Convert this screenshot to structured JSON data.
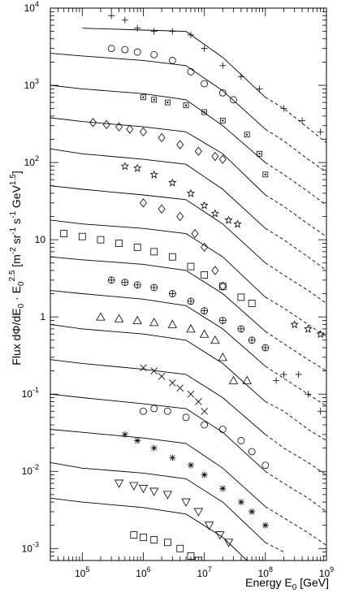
{
  "chart_data": {
    "type": "scatter",
    "x_scale": "log",
    "y_scale": "log",
    "xlim": [
      30000,
      1000000000
    ],
    "ylim": [
      0.0007,
      10000
    ],
    "xlabel": "Energy E₀ [GeV]",
    "ylabel": "Flux dΦ/dE₀ · E₀^2.5 [m⁻² sr⁻¹ s⁻¹ GeV¹˙⁵]",
    "x_ticks": [
      {
        "value": 100000,
        "base": "10",
        "exp": "5"
      },
      {
        "value": 1000000,
        "base": "10",
        "exp": "6"
      },
      {
        "value": 10000000,
        "base": "10",
        "exp": "7"
      },
      {
        "value": 100000000,
        "base": "10",
        "exp": "8"
      },
      {
        "value": 1000000000,
        "base": "10",
        "exp": "9"
      }
    ],
    "y_ticks": [
      {
        "value": 10000,
        "base": "10",
        "exp": "4"
      },
      {
        "value": 1000,
        "base": "10",
        "exp": "3"
      },
      {
        "value": 100,
        "base": "10",
        "exp": "2"
      },
      {
        "value": 10,
        "base": "10",
        "exp": ""
      },
      {
        "value": 1,
        "base": "1",
        "exp": ""
      },
      {
        "value": 0.1,
        "base": "10",
        "exp": "-1"
      },
      {
        "value": 0.01,
        "base": "10",
        "exp": "-2"
      },
      {
        "value": 0.001,
        "base": "10",
        "exp": "-3"
      }
    ],
    "model_curves_solid_until": 100000000,
    "series": [
      {
        "marker": "plus",
        "values": [
          [
            300000,
            8000
          ],
          [
            500000,
            7000
          ],
          [
            800000,
            5500
          ],
          [
            1500000,
            5000
          ],
          [
            3000000,
            5000
          ],
          [
            6000000,
            4500
          ],
          [
            10000000,
            3000
          ],
          [
            20000000,
            1800
          ],
          [
            40000000,
            1300
          ],
          [
            80000000,
            900
          ],
          [
            200000000,
            500
          ],
          [
            400000000,
            350
          ],
          [
            800000000,
            250
          ]
        ]
      },
      {
        "marker": "circle",
        "values": [
          [
            300000,
            3000
          ],
          [
            500000,
            2900
          ],
          [
            800000,
            2700
          ],
          [
            1500000,
            2500
          ],
          [
            3000000,
            2100
          ],
          [
            6000000,
            1500
          ],
          [
            10000000,
            1050
          ],
          [
            20000000,
            800
          ],
          [
            30000000,
            650
          ]
        ]
      },
      {
        "marker": "boxdot",
        "values": [
          [
            1000000,
            700
          ],
          [
            1500000,
            650
          ],
          [
            2500000,
            600
          ],
          [
            5000000,
            550
          ],
          [
            10000000,
            450
          ],
          [
            20000000,
            350
          ],
          [
            50000000,
            230
          ],
          [
            80000000,
            130
          ],
          [
            100000000,
            70
          ]
        ]
      },
      {
        "marker": "diamond",
        "values": [
          [
            150000,
            330
          ],
          [
            250000,
            310
          ],
          [
            400000,
            290
          ],
          [
            600000,
            270
          ],
          [
            1000000,
            250
          ],
          [
            2000000,
            210
          ],
          [
            4000000,
            170
          ],
          [
            8000000,
            140
          ],
          [
            15000000,
            120
          ],
          [
            20000000,
            110
          ]
        ]
      },
      {
        "marker": "star",
        "values": [
          [
            500000,
            90
          ],
          [
            800000,
            85
          ],
          [
            1500000,
            70
          ],
          [
            3000000,
            55
          ],
          [
            6000000,
            40
          ],
          [
            10000000,
            28
          ],
          [
            15000000,
            22
          ],
          [
            25000000,
            18
          ],
          [
            35000000,
            16
          ]
        ]
      },
      {
        "marker": "diamond",
        "values": [
          [
            1000000,
            30
          ],
          [
            2000000,
            25
          ],
          [
            4000000,
            20
          ],
          [
            7000000,
            12
          ],
          [
            10000000,
            8
          ],
          [
            15000000,
            4
          ],
          [
            20000000,
            2.5
          ]
        ]
      },
      {
        "marker": "square",
        "values": [
          [
            50000,
            12
          ],
          [
            100000,
            11
          ],
          [
            200000,
            10
          ],
          [
            400000,
            9
          ],
          [
            800000,
            8
          ],
          [
            1500000,
            7
          ],
          [
            3000000,
            6
          ],
          [
            6000000,
            4.5
          ],
          [
            10000000,
            3.5
          ],
          [
            20000000,
            2.5
          ],
          [
            40000000,
            1.8
          ],
          [
            60000000,
            1.5
          ]
        ]
      },
      {
        "marker": "circleplus",
        "values": [
          [
            300000,
            3
          ],
          [
            500000,
            2.8
          ],
          [
            800000,
            2.6
          ],
          [
            1500000,
            2.4
          ],
          [
            3000000,
            2
          ],
          [
            6000000,
            1.6
          ],
          [
            10000000,
            1.2
          ],
          [
            20000000,
            0.9
          ],
          [
            40000000,
            0.7
          ],
          [
            60000000,
            0.5
          ],
          [
            100000000,
            0.4
          ]
        ]
      },
      {
        "marker": "triangle",
        "values": [
          [
            200000,
            1
          ],
          [
            400000,
            0.95
          ],
          [
            800000,
            0.9
          ],
          [
            1500000,
            0.85
          ],
          [
            3000000,
            0.8
          ],
          [
            6000000,
            0.7
          ],
          [
            10000000,
            0.6
          ],
          [
            15000000,
            0.5
          ],
          [
            20000000,
            0.3
          ],
          [
            30000000,
            0.15
          ],
          [
            50000000,
            0.15
          ]
        ]
      },
      {
        "marker": "cross",
        "values": [
          [
            1000000,
            0.22
          ],
          [
            1500000,
            0.2
          ],
          [
            2000000,
            0.17
          ],
          [
            3000000,
            0.14
          ],
          [
            4000000,
            0.12
          ],
          [
            6000000,
            0.1
          ],
          [
            8000000,
            0.08
          ],
          [
            10000000,
            0.06
          ]
        ]
      },
      {
        "marker": "circle",
        "values": [
          [
            1000000,
            0.06
          ],
          [
            1500000,
            0.065
          ],
          [
            2500000,
            0.06
          ],
          [
            5000000,
            0.05
          ],
          [
            10000000,
            0.04
          ],
          [
            20000000,
            0.035
          ],
          [
            40000000,
            0.025
          ],
          [
            60000000,
            0.018
          ],
          [
            100000000,
            0.012
          ]
        ]
      },
      {
        "marker": "asterisk",
        "values": [
          [
            500000,
            0.03
          ],
          [
            800000,
            0.025
          ],
          [
            1500000,
            0.02
          ],
          [
            3000000,
            0.015
          ],
          [
            6000000,
            0.012
          ],
          [
            10000000,
            0.009
          ],
          [
            20000000,
            0.006
          ],
          [
            40000000,
            0.004
          ],
          [
            60000000,
            0.003
          ],
          [
            100000000,
            0.002
          ]
        ]
      },
      {
        "marker": "triangle-down",
        "values": [
          [
            400000,
            0.007
          ],
          [
            700000,
            0.0065
          ],
          [
            1000000,
            0.006
          ],
          [
            1500000,
            0.0055
          ],
          [
            2500000,
            0.005
          ],
          [
            5000000,
            0.004
          ],
          [
            8000000,
            0.003
          ],
          [
            12000000,
            0.002
          ],
          [
            18000000,
            0.0015
          ],
          [
            25000000,
            0.0012
          ]
        ]
      },
      {
        "marker": "square",
        "values": [
          [
            700000,
            0.0015
          ],
          [
            1000000,
            0.0014
          ],
          [
            1500000,
            0.0013
          ],
          [
            2500000,
            0.0012
          ],
          [
            4000000,
            0.001
          ],
          [
            6000000,
            0.0008
          ],
          [
            8000000,
            0.0007
          ]
        ]
      },
      {
        "marker": "star",
        "values": [
          [
            300000000,
            0.8
          ],
          [
            500000000,
            0.7
          ],
          [
            800000000,
            0.6
          ]
        ]
      },
      {
        "marker": "plus",
        "values": [
          [
            150000000,
            0.15
          ],
          [
            200000000,
            0.18
          ],
          [
            350000000,
            0.18
          ],
          [
            500000000,
            0.1
          ],
          [
            800000000,
            0.06
          ]
        ]
      }
    ],
    "curves": [
      [
        [
          100000,
          5500
        ],
        [
          1000000,
          5200
        ],
        [
          5000000,
          5000
        ],
        [
          20000000,
          2300
        ],
        [
          100000000,
          700
        ],
        [
          200000000,
          500
        ],
        [
          500000000,
          280
        ],
        [
          1000000000,
          180
        ]
      ],
      [
        [
          30000,
          2600
        ],
        [
          100000,
          2400
        ],
        [
          1000000,
          2100
        ],
        [
          5000000,
          1800
        ],
        [
          20000000,
          850
        ],
        [
          100000000,
          270
        ],
        [
          200000000,
          190
        ],
        [
          500000000,
          110
        ],
        [
          1000000000,
          75
        ]
      ],
      [
        [
          30000,
          1000
        ],
        [
          100000,
          900
        ],
        [
          1000000,
          780
        ],
        [
          5000000,
          650
        ],
        [
          20000000,
          300
        ],
        [
          100000000,
          100
        ],
        [
          200000000,
          70
        ],
        [
          500000000,
          42
        ],
        [
          1000000000,
          28
        ]
      ],
      [
        [
          30000,
          380
        ],
        [
          100000,
          340
        ],
        [
          1000000,
          290
        ],
        [
          5000000,
          250
        ],
        [
          20000000,
          130
        ],
        [
          100000000,
          38
        ],
        [
          200000000,
          27
        ],
        [
          500000000,
          16
        ],
        [
          1000000000,
          11
        ]
      ],
      [
        [
          30000,
          150
        ],
        [
          100000,
          130
        ],
        [
          1000000,
          110
        ],
        [
          5000000,
          95
        ],
        [
          20000000,
          45
        ],
        [
          100000000,
          14
        ],
        [
          200000000,
          10
        ],
        [
          500000000,
          6
        ],
        [
          1000000000,
          4
        ]
      ],
      [
        [
          30000,
          50
        ],
        [
          100000,
          45
        ],
        [
          1000000,
          38
        ],
        [
          5000000,
          33
        ],
        [
          20000000,
          16
        ],
        [
          100000000,
          5
        ],
        [
          200000000,
          3.5
        ],
        [
          500000000,
          2.2
        ],
        [
          1000000000,
          1.5
        ]
      ],
      [
        [
          30000,
          18
        ],
        [
          100000,
          16
        ],
        [
          1000000,
          14
        ],
        [
          5000000,
          12
        ],
        [
          20000000,
          6
        ],
        [
          100000000,
          1.8
        ],
        [
          200000000,
          1.3
        ],
        [
          500000000,
          0.8
        ],
        [
          1000000000,
          0.55
        ]
      ],
      [
        [
          30000,
          6
        ],
        [
          100000,
          5.5
        ],
        [
          1000000,
          4.8
        ],
        [
          5000000,
          4
        ],
        [
          20000000,
          2
        ],
        [
          100000000,
          0.65
        ],
        [
          200000000,
          0.45
        ],
        [
          500000000,
          0.28
        ],
        [
          1000000000,
          0.2
        ]
      ],
      [
        [
          30000,
          2.2
        ],
        [
          100000,
          2
        ],
        [
          1000000,
          1.7
        ],
        [
          5000000,
          1.4
        ],
        [
          20000000,
          0.7
        ],
        [
          100000000,
          0.23
        ],
        [
          200000000,
          0.16
        ],
        [
          500000000,
          0.1
        ],
        [
          1000000000,
          0.07
        ]
      ],
      [
        [
          30000,
          0.8
        ],
        [
          100000,
          0.7
        ],
        [
          1000000,
          0.6
        ],
        [
          5000000,
          0.5
        ],
        [
          20000000,
          0.25
        ],
        [
          100000000,
          0.08
        ],
        [
          200000000,
          0.06
        ],
        [
          500000000,
          0.035
        ],
        [
          1000000000,
          0.025
        ]
      ],
      [
        [
          30000,
          0.28
        ],
        [
          100000,
          0.25
        ],
        [
          1000000,
          0.21
        ],
        [
          5000000,
          0.18
        ],
        [
          20000000,
          0.09
        ],
        [
          100000000,
          0.03
        ],
        [
          200000000,
          0.02
        ],
        [
          500000000,
          0.013
        ],
        [
          1000000000,
          0.009
        ]
      ],
      [
        [
          30000,
          0.1
        ],
        [
          100000,
          0.09
        ],
        [
          1000000,
          0.075
        ],
        [
          5000000,
          0.065
        ],
        [
          20000000,
          0.032
        ],
        [
          100000000,
          0.01
        ],
        [
          200000000,
          0.007
        ],
        [
          500000000,
          0.0045
        ],
        [
          1000000000,
          0.003
        ]
      ],
      [
        [
          30000,
          0.035
        ],
        [
          100000,
          0.032
        ],
        [
          1000000,
          0.027
        ],
        [
          5000000,
          0.023
        ],
        [
          20000000,
          0.011
        ],
        [
          100000000,
          0.0035
        ],
        [
          200000000,
          0.0025
        ],
        [
          500000000,
          0.0016
        ],
        [
          1000000000,
          0.0011
        ]
      ],
      [
        [
          30000,
          0.013
        ],
        [
          100000,
          0.011
        ],
        [
          1000000,
          0.0095
        ],
        [
          5000000,
          0.008
        ],
        [
          20000000,
          0.004
        ],
        [
          100000000,
          0.0012
        ],
        [
          200000000,
          0.0009
        ]
      ],
      [
        [
          30000,
          0.0045
        ],
        [
          100000,
          0.004
        ],
        [
          1000000,
          0.0034
        ],
        [
          5000000,
          0.0028
        ],
        [
          20000000,
          0.0014
        ],
        [
          50000000,
          0.0007
        ]
      ]
    ]
  }
}
